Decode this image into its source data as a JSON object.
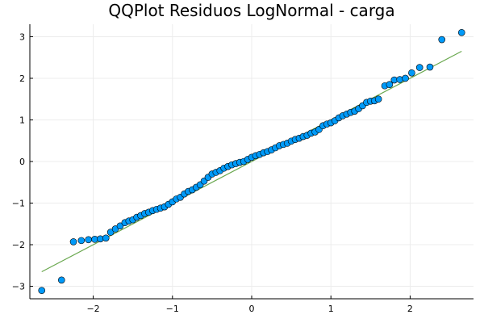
{
  "chart_data": {
    "type": "scatter",
    "title": "QQPlot Residuos LogNormal - carga",
    "xlabel": "",
    "ylabel": "",
    "xlim": [
      -2.8,
      2.8
    ],
    "ylim": [
      -3.3,
      3.3
    ],
    "xticks": [
      -2,
      -1,
      0,
      1,
      2
    ],
    "xtick_labels": [
      "−2",
      "−1",
      "0",
      "1",
      "2"
    ],
    "yticks": [
      -3,
      -2,
      -1,
      0,
      1,
      2,
      3
    ],
    "ytick_labels": [
      "−3",
      "−2",
      "−1",
      "0",
      "1",
      "2",
      "3"
    ],
    "grid": true,
    "legend": "none",
    "colors": {
      "points": "#009af9",
      "point_edge": "#000000",
      "line": "#6aa84f",
      "grid": "#ececec",
      "axis": "#000000"
    },
    "reference_line": {
      "x": [
        -2.65,
        2.65
      ],
      "y": [
        -2.65,
        2.65
      ]
    },
    "points": {
      "x": [
        -2.65,
        -2.4,
        -2.25,
        -2.15,
        -2.06,
        -1.98,
        -1.91,
        -1.84,
        -1.78,
        -1.72,
        -1.66,
        -1.6,
        -1.55,
        -1.5,
        -1.45,
        -1.4,
        -1.35,
        -1.3,
        -1.25,
        -1.2,
        -1.15,
        -1.1,
        -1.05,
        -1.0,
        -0.95,
        -0.9,
        -0.85,
        -0.8,
        -0.75,
        -0.7,
        -0.65,
        -0.6,
        -0.55,
        -0.5,
        -0.45,
        -0.4,
        -0.35,
        -0.3,
        -0.25,
        -0.2,
        -0.15,
        -0.1,
        -0.05,
        0.0,
        0.05,
        0.1,
        0.15,
        0.2,
        0.25,
        0.3,
        0.35,
        0.4,
        0.45,
        0.5,
        0.55,
        0.6,
        0.65,
        0.7,
        0.75,
        0.8,
        0.85,
        0.9,
        0.95,
        1.0,
        1.05,
        1.1,
        1.15,
        1.2,
        1.25,
        1.3,
        1.35,
        1.4,
        1.45,
        1.5,
        1.55,
        1.6,
        1.68,
        1.74,
        1.8,
        1.87,
        1.94,
        2.02,
        2.12,
        2.25,
        2.4,
        2.65
      ],
      "y": [
        -3.1,
        -2.85,
        -1.93,
        -1.9,
        -1.88,
        -1.87,
        -1.86,
        -1.84,
        -1.7,
        -1.62,
        -1.55,
        -1.47,
        -1.43,
        -1.4,
        -1.34,
        -1.3,
        -1.25,
        -1.22,
        -1.18,
        -1.15,
        -1.12,
        -1.09,
        -1.03,
        -0.97,
        -0.9,
        -0.86,
        -0.78,
        -0.72,
        -0.68,
        -0.62,
        -0.56,
        -0.47,
        -0.38,
        -0.3,
        -0.26,
        -0.22,
        -0.16,
        -0.12,
        -0.08,
        -0.05,
        -0.02,
        0.0,
        0.05,
        0.1,
        0.14,
        0.17,
        0.21,
        0.24,
        0.28,
        0.33,
        0.38,
        0.41,
        0.44,
        0.49,
        0.53,
        0.56,
        0.6,
        0.63,
        0.68,
        0.71,
        0.77,
        0.86,
        0.9,
        0.93,
        0.98,
        1.05,
        1.1,
        1.14,
        1.18,
        1.21,
        1.27,
        1.34,
        1.42,
        1.45,
        1.46,
        1.5,
        1.82,
        1.85,
        1.96,
        1.97,
        2.0,
        2.13,
        2.26,
        2.27,
        2.93,
        3.1
      ]
    }
  }
}
